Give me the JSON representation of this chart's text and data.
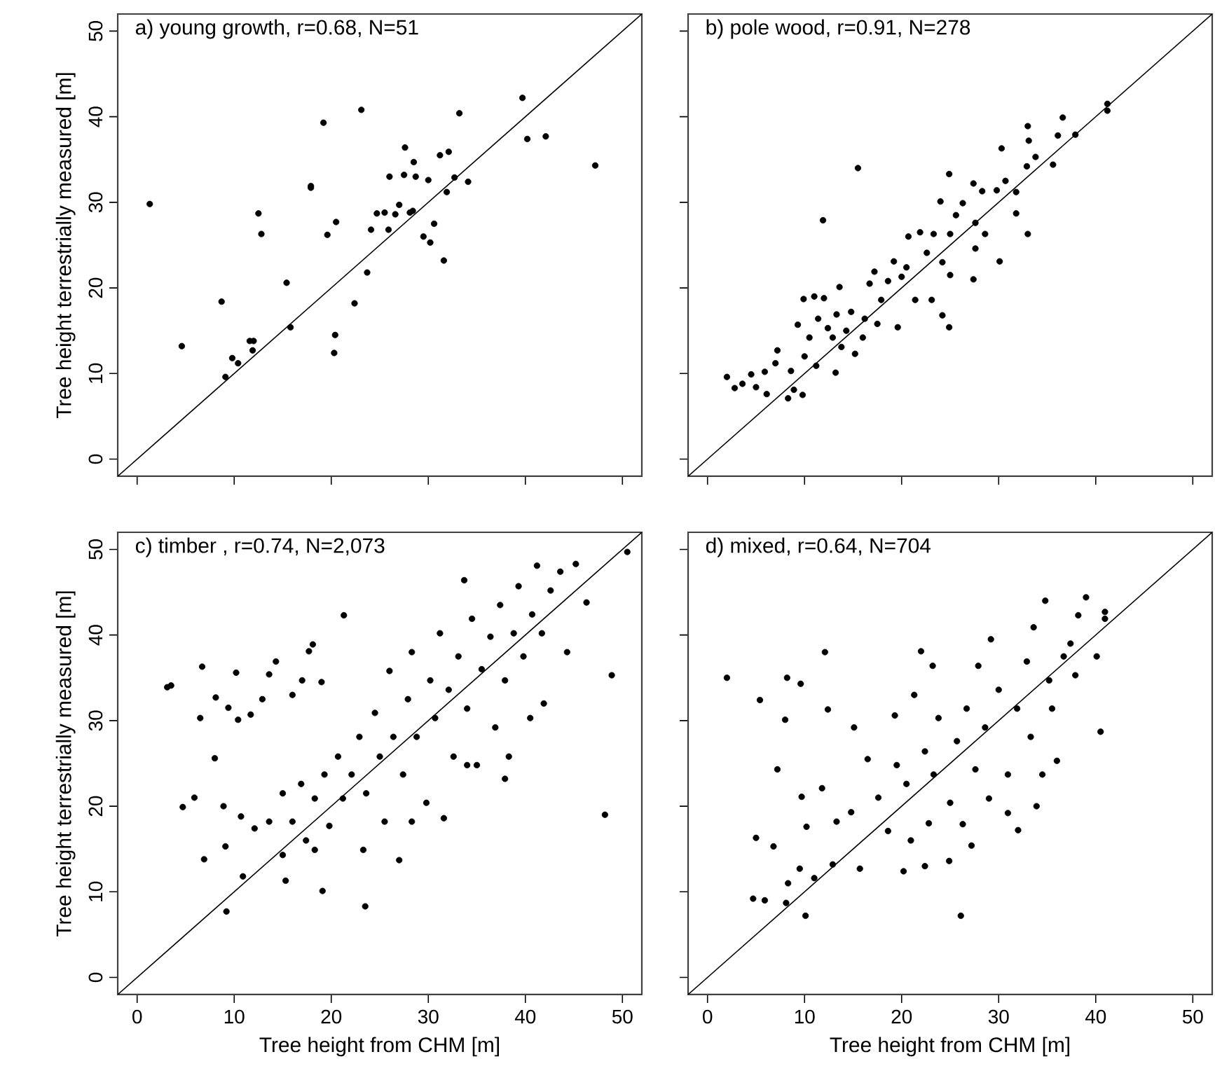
{
  "chart_data": [
    {
      "type": "scatter",
      "title": "a) young growth, r=0.68, N=51",
      "ylabel": "Tree height terrestrially measured [m]",
      "xlim": [
        -2,
        52
      ],
      "ylim": [
        -2,
        52
      ],
      "xticks": [
        0,
        10,
        20,
        30,
        40,
        50
      ],
      "yticks": [
        0,
        10,
        20,
        30,
        40,
        50
      ],
      "tick_labels": "y",
      "series": [
        {
          "color": "#000000",
          "marker": "circle",
          "x": [
            1.3,
            4.6,
            8.7,
            9.1,
            9.8,
            10.4,
            11.6,
            12.0,
            11.9,
            12.5,
            12.8,
            15.4,
            15.8,
            17.9,
            17.9,
            19.2,
            19.6,
            20.4,
            20.3,
            20.5,
            22.4,
            23.1,
            23.7,
            24.1,
            24.7,
            25.5,
            25.9,
            26.0,
            26.6,
            27.0,
            27.5,
            27.6,
            28.1,
            28.4,
            28.5,
            28.7,
            29.5,
            30.0,
            30.2,
            30.6,
            31.2,
            31.6,
            31.9,
            32.1,
            32.7,
            33.2,
            34.1,
            39.7,
            40.2,
            42.1,
            47.2
          ],
          "values": [
            29.8,
            13.2,
            18.4,
            9.6,
            11.8,
            11.2,
            13.8,
            13.8,
            12.7,
            28.7,
            26.3,
            20.6,
            15.4,
            31.9,
            31.7,
            39.3,
            26.2,
            14.5,
            12.4,
            27.7,
            18.2,
            40.8,
            21.8,
            26.8,
            28.7,
            28.8,
            26.8,
            33.0,
            28.6,
            29.7,
            33.2,
            36.4,
            28.8,
            29.0,
            34.7,
            33.0,
            26.0,
            32.6,
            25.3,
            27.5,
            35.5,
            23.2,
            31.2,
            35.9,
            32.9,
            40.4,
            32.4,
            42.2,
            37.4,
            37.7,
            34.3
          ]
        },
        {
          "type": "line",
          "color": "#000000",
          "line_style": "solid",
          "x": [
            -2,
            52
          ],
          "values": [
            -2,
            52
          ]
        }
      ]
    },
    {
      "type": "scatter",
      "title": "b) pole wood, r=0.91, N=278",
      "xlim": [
        -2,
        52
      ],
      "ylim": [
        -2,
        52
      ],
      "xticks": [
        0,
        10,
        20,
        30,
        40,
        50
      ],
      "yticks": [
        0,
        10,
        20,
        30,
        40,
        50
      ],
      "tick_labels": false,
      "series": [
        {
          "color": "#000000",
          "marker": "circle",
          "x": [
            2.0,
            2.8,
            3.6,
            4.5,
            5.0,
            5.9,
            6.1,
            7.0,
            7.2,
            8.3,
            8.6,
            8.9,
            9.8,
            9.3,
            9.9,
            10.0,
            10.5,
            11.0,
            11.2,
            11.4,
            11.9,
            12.0,
            12.4,
            12.9,
            13.2,
            13.3,
            13.6,
            13.8,
            14.3,
            14.8,
            15.2,
            15.5,
            16.0,
            16.2,
            16.7,
            17.2,
            17.5,
            17.9,
            18.6,
            19.2,
            19.6,
            20.0,
            20.5,
            20.7,
            21.4,
            21.9,
            22.6,
            23.1,
            23.3,
            24.0,
            24.2,
            24.2,
            24.9,
            24.9,
            25.0,
            25.0,
            25.6,
            26.3,
            27.4,
            27.4,
            27.6,
            27.6,
            28.3,
            28.6,
            29.8,
            30.1,
            30.3,
            30.7,
            31.8,
            31.8,
            33.0,
            33.0,
            33.1,
            32.9,
            33.8,
            35.6,
            36.1,
            36.6,
            37.9,
            41.2,
            41.2
          ],
          "values": [
            9.6,
            8.3,
            8.8,
            9.9,
            8.4,
            10.2,
            7.6,
            11.2,
            12.7,
            7.1,
            10.3,
            8.1,
            7.5,
            15.7,
            18.7,
            12.0,
            14.2,
            19.0,
            10.9,
            16.4,
            27.9,
            18.8,
            15.3,
            14.2,
            10.1,
            16.9,
            20.1,
            13.1,
            15.0,
            17.2,
            12.3,
            34.0,
            14.2,
            16.4,
            20.5,
            21.9,
            15.8,
            18.6,
            20.8,
            23.1,
            15.4,
            21.3,
            22.4,
            26.0,
            18.6,
            26.5,
            24.1,
            18.6,
            26.3,
            30.1,
            23.0,
            16.8,
            15.4,
            33.3,
            26.3,
            21.5,
            28.5,
            29.9,
            32.2,
            21.0,
            24.6,
            27.6,
            31.3,
            26.3,
            31.4,
            23.1,
            36.3,
            32.5,
            28.7,
            31.2,
            26.3,
            38.9,
            37.2,
            34.2,
            35.3,
            34.4,
            37.8,
            39.9,
            37.9,
            41.5,
            40.7
          ]
        },
        {
          "type": "line",
          "color": "#000000",
          "line_style": "solid",
          "x": [
            -2,
            52
          ],
          "values": [
            -2,
            52
          ]
        }
      ]
    },
    {
      "type": "scatter",
      "title": "c) timber , r=0.74, N=2,073",
      "xlabel": "Tree height from CHM [m]",
      "ylabel": "Tree height terrestrially measured [m]",
      "xlim": [
        -2,
        52
      ],
      "ylim": [
        -2,
        52
      ],
      "xticks": [
        0,
        10,
        20,
        30,
        40,
        50
      ],
      "yticks": [
        0,
        10,
        20,
        30,
        40,
        50
      ],
      "series": [
        {
          "color": "#000000",
          "marker": "circle",
          "x": [
            3.1,
            3.5,
            6.7,
            6.5,
            8.1,
            8.0,
            9.4,
            10.4,
            10.2,
            11.7,
            12.9,
            13.6,
            14.3,
            16.0,
            17.0,
            17.7,
            18.1,
            19.0,
            21.3,
            4.7,
            5.9,
            8.9,
            6.9,
            9.2,
            10.9,
            9.1,
            10.7,
            15.3,
            19.1,
            23.5,
            27.0,
            31.6,
            48.2,
            48.9,
            50.5,
            46.3,
            45.2,
            41.2,
            33.7,
            37.9,
            41.9,
            40.5,
            44.3,
            12.1,
            13.6,
            15.0,
            16.0,
            16.9,
            17.4,
            18.3,
            19.3,
            19.8,
            20.7,
            21.2,
            22.1,
            22.9,
            23.3,
            23.6,
            24.5,
            25.0,
            25.5,
            26.0,
            26.4,
            27.4,
            27.9,
            28.3,
            28.8,
            29.8,
            30.2,
            30.7,
            31.2,
            32.1,
            32.6,
            33.1,
            34.0,
            34.5,
            35.0,
            35.5,
            36.4,
            36.9,
            37.4,
            37.9,
            38.3,
            38.8,
            39.3,
            39.8,
            40.7,
            41.7,
            42.6,
            43.6,
            15.0,
            18.3,
            28.3,
            34.0
          ],
          "values": [
            33.9,
            34.1,
            36.3,
            30.3,
            32.7,
            25.6,
            31.5,
            30.1,
            35.6,
            30.7,
            32.5,
            35.4,
            36.9,
            33.0,
            34.7,
            38.1,
            38.9,
            34.5,
            42.3,
            19.9,
            21.0,
            20.0,
            13.8,
            7.7,
            11.8,
            15.3,
            18.8,
            11.3,
            10.1,
            8.3,
            13.7,
            18.6,
            19.0,
            35.3,
            49.7,
            43.8,
            48.3,
            48.1,
            46.4,
            23.2,
            32.0,
            30.3,
            38.0,
            17.4,
            18.2,
            21.5,
            18.2,
            22.6,
            16.0,
            20.9,
            23.7,
            17.7,
            25.8,
            20.9,
            23.7,
            28.1,
            14.9,
            21.5,
            30.9,
            25.8,
            18.2,
            35.8,
            28.1,
            23.7,
            32.5,
            38.0,
            28.1,
            20.4,
            34.7,
            30.3,
            40.2,
            33.6,
            25.8,
            37.5,
            31.4,
            41.9,
            24.8,
            36.0,
            39.8,
            29.2,
            43.5,
            34.7,
            25.8,
            40.2,
            45.7,
            37.5,
            42.4,
            40.2,
            45.2,
            47.4,
            14.3,
            14.9,
            18.2,
            24.8
          ]
        },
        {
          "type": "line",
          "color": "#000000",
          "line_style": "solid",
          "x": [
            -2,
            52
          ],
          "values": [
            -2,
            52
          ]
        }
      ]
    },
    {
      "type": "scatter",
      "title": "d) mixed, r=0.64, N=704",
      "xlabel": "Tree height from CHM [m]",
      "xlim": [
        -2,
        52
      ],
      "ylim": [
        -2,
        52
      ],
      "xticks": [
        0,
        10,
        20,
        30,
        40,
        50
      ],
      "yticks": [
        0,
        10,
        20,
        30,
        40,
        50
      ],
      "tick_labels": "x",
      "series": [
        {
          "color": "#000000",
          "marker": "circle",
          "x": [
            2.0,
            5.4,
            8.0,
            8.2,
            9.6,
            12.1,
            12.4,
            15.1,
            7.2,
            5.0,
            6.8,
            4.7,
            5.9,
            8.1,
            10.1,
            26.1,
            8.3,
            9.5,
            11.0,
            10.2,
            11.8,
            9.7,
            13.3,
            14.8,
            12.9,
            15.7,
            16.5,
            17.6,
            18.6,
            20.2,
            20.95,
            22.4,
            22.8,
            19.3,
            19.5,
            20.5,
            21.3,
            22.0,
            23.2,
            22.4,
            23.3,
            23.8,
            24.9,
            25.0,
            25.7,
            26.3,
            26.7,
            27.2,
            27.6,
            27.9,
            28.6,
            29.0,
            29.2,
            30.0,
            30.95,
            30.95,
            32.0,
            31.9,
            32.9,
            33.3,
            33.9,
            33.6,
            34.5,
            34.8,
            35.2,
            36.0,
            35.5,
            36.7,
            37.4,
            37.9,
            38.2,
            39.0,
            40.1,
            40.5,
            40.95,
            40.95
          ],
          "values": [
            35.0,
            32.4,
            30.1,
            35.0,
            34.3,
            38.0,
            31.3,
            29.2,
            24.3,
            16.3,
            15.3,
            9.2,
            9.0,
            8.7,
            7.2,
            7.2,
            11.0,
            12.7,
            11.6,
            17.6,
            22.1,
            21.1,
            18.2,
            19.3,
            13.2,
            12.7,
            25.5,
            21.0,
            17.1,
            12.4,
            16.0,
            13.0,
            18.0,
            30.6,
            24.8,
            22.6,
            33.0,
            38.1,
            36.4,
            26.4,
            23.7,
            30.3,
            13.6,
            20.4,
            27.6,
            17.9,
            31.4,
            15.4,
            24.3,
            36.4,
            29.2,
            20.9,
            39.5,
            33.6,
            23.7,
            19.2,
            17.2,
            31.4,
            36.9,
            28.1,
            20.0,
            40.9,
            23.7,
            44.0,
            34.7,
            25.3,
            31.4,
            37.5,
            39.0,
            35.3,
            42.3,
            44.4,
            37.5,
            28.7,
            42.7,
            41.9
          ]
        },
        {
          "type": "line",
          "color": "#000000",
          "line_style": "solid",
          "x": [
            -2,
            52
          ],
          "values": [
            -2,
            52
          ]
        }
      ]
    }
  ]
}
